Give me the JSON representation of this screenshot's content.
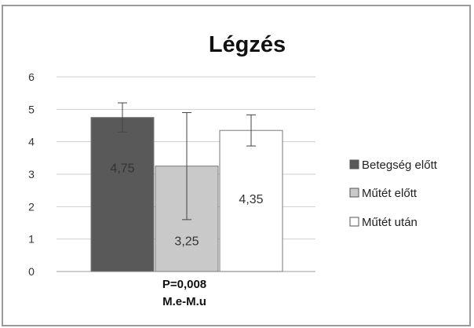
{
  "chart_data": {
    "type": "bar",
    "title": "Légzés",
    "categories": [
      ""
    ],
    "series": [
      {
        "name": "Betegség előtt",
        "values": [
          4.75
        ],
        "error": [
          0.45
        ],
        "label": "4,75",
        "color": "#595959"
      },
      {
        "name": "Műtét előtt",
        "values": [
          3.25
        ],
        "error": [
          1.65
        ],
        "label": "3,25",
        "color": "#c9c9c9"
      },
      {
        "name": "Műtét után",
        "values": [
          4.35
        ],
        "error": [
          0.48
        ],
        "label": "4,35",
        "color": "#ffffff"
      }
    ],
    "ylim": [
      0,
      6
    ],
    "yticks": [
      "0",
      "1",
      "2",
      "3",
      "4",
      "5",
      "6"
    ],
    "grid": true,
    "legend": "right",
    "annotations": [
      "P=0,008",
      "M.e-M.u"
    ],
    "xlabel": "",
    "ylabel": ""
  }
}
